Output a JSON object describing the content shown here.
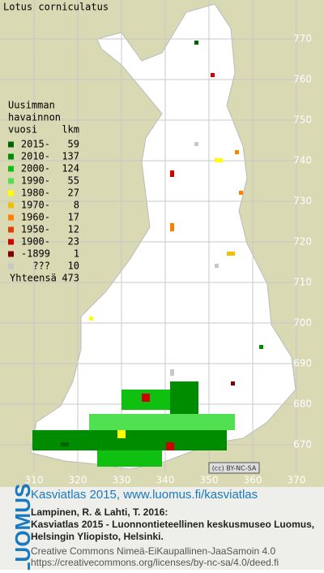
{
  "title": "Lotus corniculatus",
  "legend": {
    "heading": [
      "Uusimman",
      "havainnon",
      "vuosi"
    ],
    "count_heading": "lkm",
    "rows": [
      {
        "label": "2015-",
        "count": 59,
        "color": "#006400"
      },
      {
        "label": "2010-",
        "count": 137,
        "color": "#008c00"
      },
      {
        "label": "2000-",
        "count": 124,
        "color": "#10c010"
      },
      {
        "label": "1990-",
        "count": 55,
        "color": "#50e050"
      },
      {
        "label": "1980-",
        "count": 27,
        "color": "#ffff00"
      },
      {
        "label": "1970-",
        "count": 8,
        "color": "#f0c000"
      },
      {
        "label": "1960-",
        "count": 17,
        "color": "#ff8000"
      },
      {
        "label": "1950-",
        "count": 12,
        "color": "#e04000"
      },
      {
        "label": "1900-",
        "count": 23,
        "color": "#d00000"
      },
      {
        "label": "-1899",
        "count": 1,
        "color": "#800000"
      },
      {
        "label": "???",
        "count": 10,
        "color": "#c8c8c8"
      }
    ],
    "total_label": "Yhteensä",
    "total": 473
  },
  "map": {
    "y_labels": [
      770,
      760,
      750,
      740,
      730,
      720,
      710,
      700,
      690,
      680,
      670
    ],
    "x_labels": [
      310,
      320,
      330,
      340,
      350,
      360,
      370
    ],
    "license_badge": "(cc) BY-NC-SA"
  },
  "footer": {
    "brand": "LUOMUS",
    "headline": "Kasviatlas 2015, www.luomus.fi/kasviatlas",
    "citation": [
      "Lampinen, R. & Lahti, T. 2016:",
      "Kasviatlas 2015 - Luonnontieteellinen keskusmuseo Luomus,",
      "Helsingin Yliopisto, Helsinki."
    ],
    "license": [
      "Creative Commons Nimeä-EiKaupallinen-JaaSamoin 4.0",
      "https://creativecommons.org/licenses/by-nc-sa/4.0/deed.fi"
    ]
  }
}
